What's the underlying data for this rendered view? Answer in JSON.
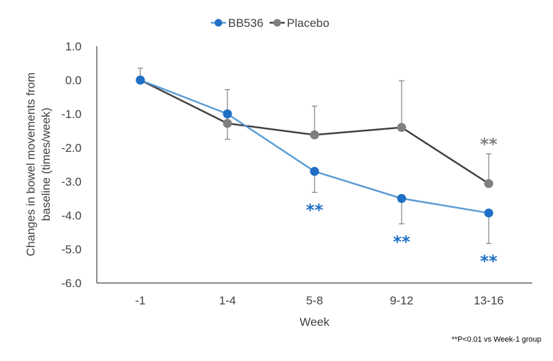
{
  "chart_data": {
    "type": "line",
    "categories": [
      "-1",
      "1-4",
      "5-8",
      "9-12",
      "13-16"
    ],
    "series": [
      {
        "name": "BB536",
        "color": "#5B9BD5",
        "marker_color": "#1F6FC5",
        "values": [
          0.0,
          -1.0,
          -2.7,
          -3.5,
          -3.93
        ],
        "error_dir": "down",
        "error": [
          0.0,
          0.75,
          0.62,
          0.75,
          0.9
        ]
      },
      {
        "name": "Placebo",
        "color": "#404040",
        "marker_color": "#7F7F7F",
        "values": [
          0.0,
          -1.28,
          -1.62,
          -1.4,
          -3.06
        ],
        "error_dir": "up",
        "error": [
          0.35,
          1.0,
          0.85,
          1.38,
          0.88
        ]
      }
    ],
    "significance": [
      {
        "series": "BB536",
        "category": "5-8",
        "text": "**",
        "color": "#1F6FC5"
      },
      {
        "series": "BB536",
        "category": "9-12",
        "text": "**",
        "color": "#1F6FC5"
      },
      {
        "series": "BB536",
        "category": "13-16",
        "text": "**",
        "color": "#1F6FC5"
      },
      {
        "series": "Placebo",
        "category": "13-16",
        "text": "**",
        "color": "#808080"
      }
    ],
    "ylim": [
      -6.0,
      1.0
    ],
    "yticks": [
      "1.0",
      "0.0",
      "-1.0",
      "-2.0",
      "-3.0",
      "-4.0",
      "-5.0",
      "-6.0"
    ],
    "xlabel": "Week",
    "ylabel_line1": "Changes in bowel movements from",
    "ylabel_line2": "baseline (times/week)",
    "legend_position": "top",
    "footnote": "**P<0.01 vs Week-1 group"
  }
}
